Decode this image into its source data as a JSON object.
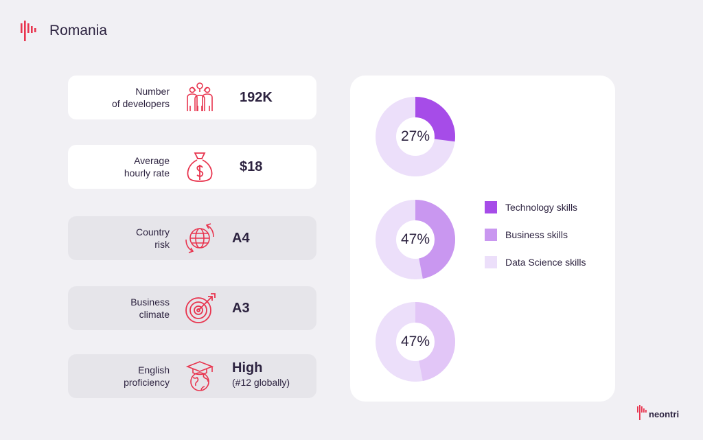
{
  "header": {
    "title": "Romania"
  },
  "stats": [
    {
      "label_line1": "Number",
      "label_line2": "of developers",
      "value": "192K",
      "icon": "team-icon"
    },
    {
      "label_line1": "Average",
      "label_line2": "hourly rate",
      "value": "$18",
      "icon": "money-bag-icon"
    },
    {
      "label_line1": "Country",
      "label_line2": "risk",
      "value": "A4",
      "icon": "globe-arrows-icon"
    },
    {
      "label_line1": "Business",
      "label_line2": "climate",
      "value": "A3",
      "icon": "target-icon"
    },
    {
      "label_line1": "English",
      "label_line2": "proficiency",
      "value": "High",
      "value_sub": "(#12 globally)",
      "icon": "graduation-globe-icon"
    }
  ],
  "chart_data": [
    {
      "type": "pie",
      "series": "Technology skills",
      "value": 27,
      "label": "27%",
      "color": "#a64ce8",
      "track_color": "#ecdffa"
    },
    {
      "type": "pie",
      "series": "Business skills",
      "value": 47,
      "label": "47%",
      "color": "#c997f0",
      "track_color": "#ecdffa"
    },
    {
      "type": "pie",
      "series": "Data Science skills",
      "value": 47,
      "label": "47%",
      "color": "#e2c6f7",
      "track_color": "#ecdffa"
    }
  ],
  "legend": [
    {
      "label": "Technology skills",
      "color": "#a64ce8"
    },
    {
      "label": "Business skills",
      "color": "#c997f0"
    },
    {
      "label": "Data Science skills",
      "color": "#ecdffa"
    }
  ],
  "brand": {
    "name": "neontri"
  },
  "colors": {
    "accent": "#e8344e",
    "background": "#f1f0f4",
    "text": "#2d2340"
  }
}
